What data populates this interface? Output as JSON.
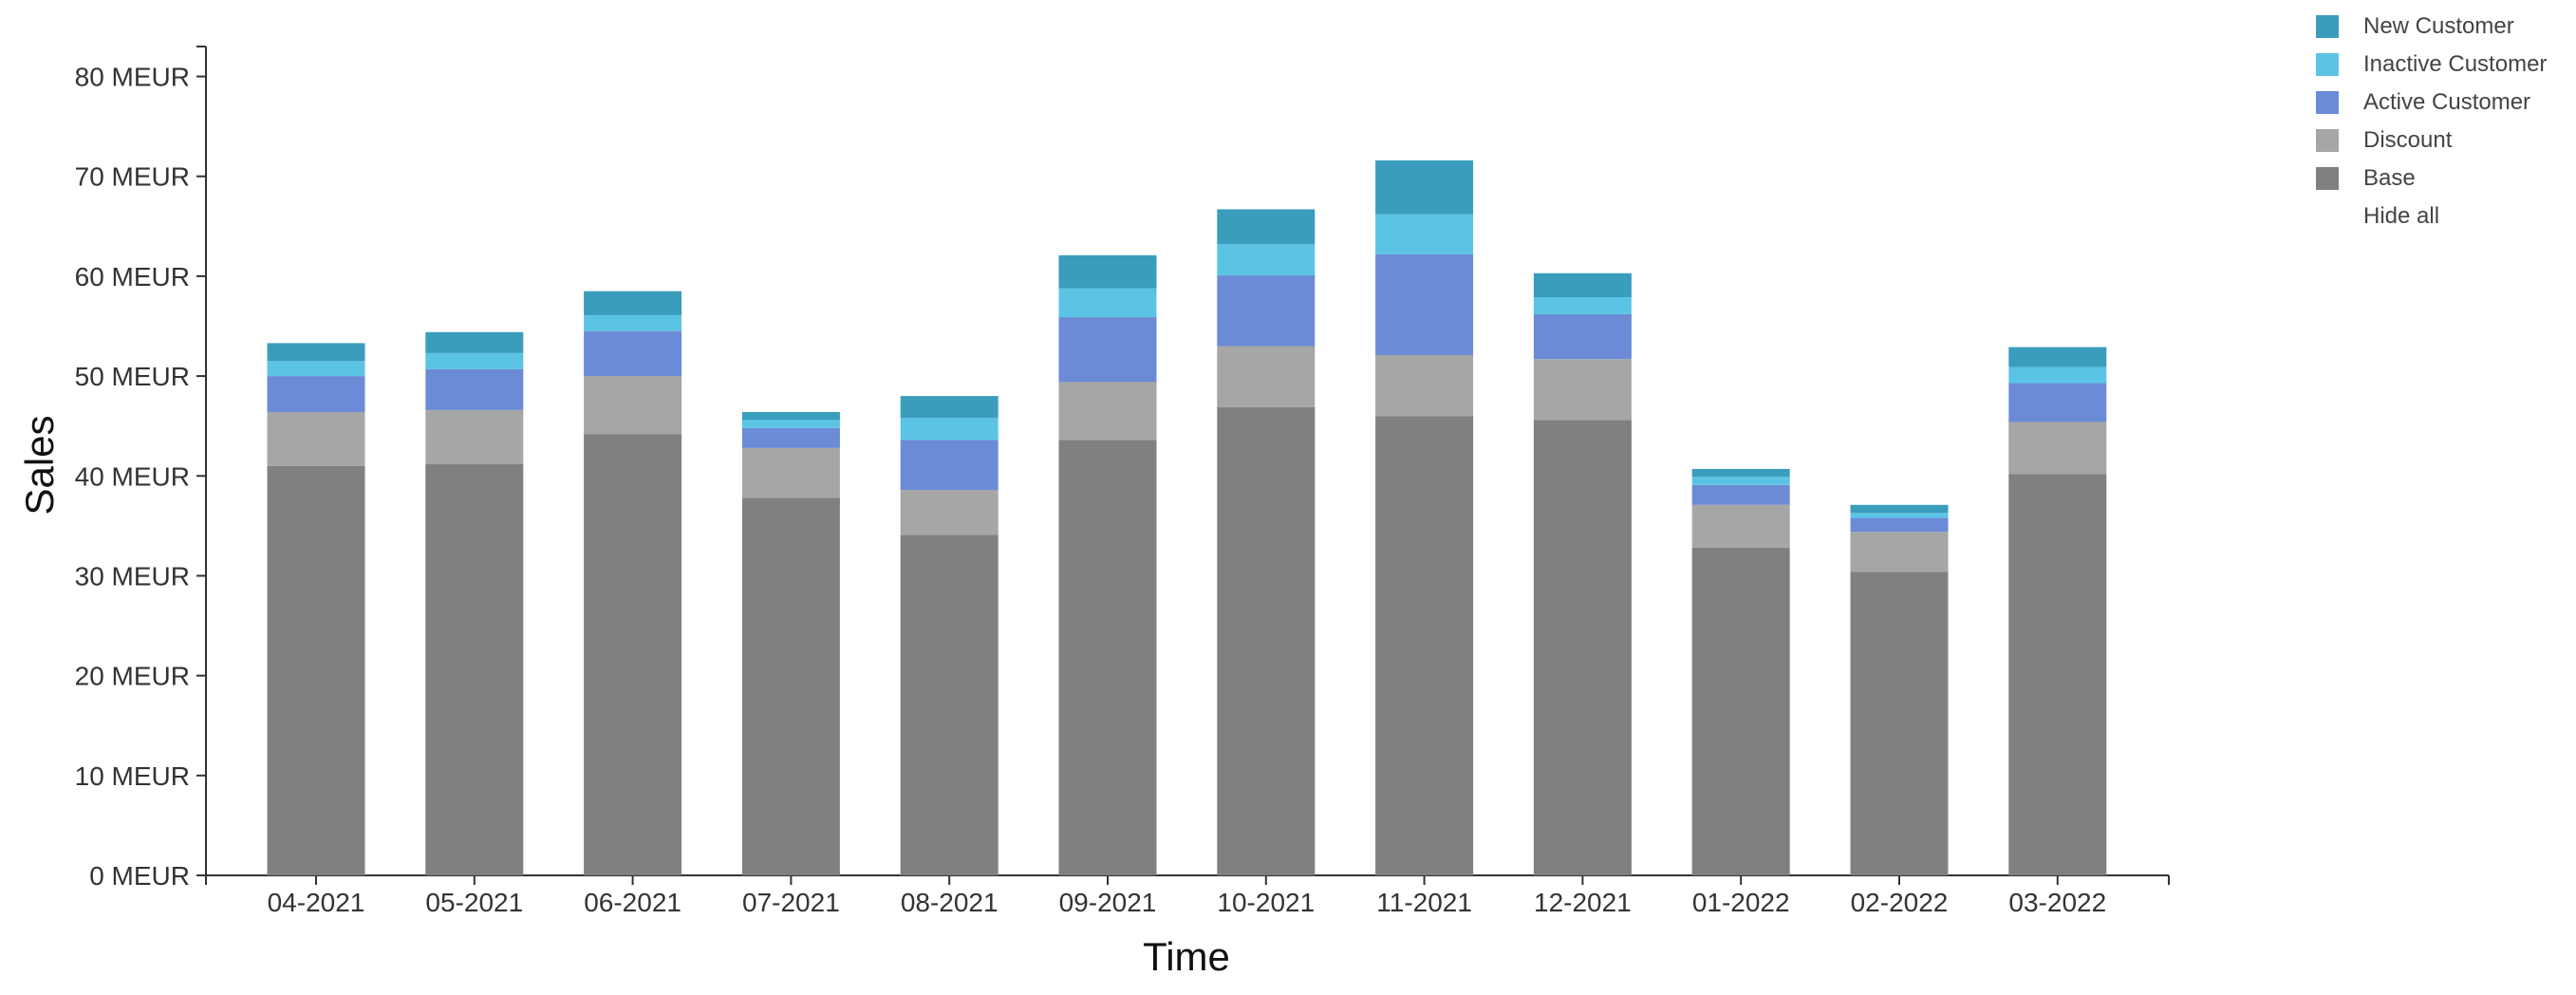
{
  "chart_data": {
    "type": "bar",
    "stacked": true,
    "xlabel": "Time",
    "ylabel": "Sales",
    "ylim": [
      0,
      83
    ],
    "yticks": [
      0,
      10,
      20,
      30,
      40,
      50,
      60,
      70,
      80
    ],
    "ytick_labels": [
      "0 MEUR",
      "10 MEUR",
      "20 MEUR",
      "30 MEUR",
      "40 MEUR",
      "50 MEUR",
      "60 MEUR",
      "70 MEUR",
      "80 MEUR"
    ],
    "categories": [
      "04-2021",
      "05-2021",
      "06-2021",
      "07-2021",
      "08-2021",
      "09-2021",
      "10-2021",
      "11-2021",
      "12-2021",
      "01-2022",
      "02-2022",
      "03-2022"
    ],
    "series": [
      {
        "name": "Base",
        "color": "#808080",
        "values": [
          41.0,
          41.2,
          44.2,
          37.8,
          34.1,
          43.6,
          46.9,
          46.0,
          45.6,
          32.8,
          30.4,
          40.2
        ]
      },
      {
        "name": "Discount",
        "color": "#a6a6a6",
        "values": [
          5.4,
          5.4,
          5.8,
          5.0,
          4.5,
          5.8,
          6.1,
          6.1,
          6.1,
          4.3,
          4.0,
          5.2
        ]
      },
      {
        "name": "Active Customer",
        "color": "#6b8bd6",
        "values": [
          3.6,
          4.1,
          4.5,
          2.0,
          5.0,
          6.5,
          7.1,
          10.1,
          4.5,
          2.0,
          1.4,
          3.9
        ]
      },
      {
        "name": "Inactive Customer",
        "color": "#5bc4e4",
        "values": [
          1.5,
          1.6,
          1.6,
          0.8,
          2.2,
          2.9,
          3.1,
          4.0,
          1.7,
          0.8,
          0.5,
          1.6
        ]
      },
      {
        "name": "New Customer",
        "color": "#3a9dbc",
        "values": [
          1.8,
          2.1,
          2.4,
          0.8,
          2.2,
          3.3,
          3.5,
          5.4,
          2.4,
          0.8,
          0.8,
          2.0
        ]
      }
    ],
    "legend": {
      "placement": "top-right",
      "order": [
        "New Customer",
        "Inactive Customer",
        "Active Customer",
        "Discount",
        "Base"
      ],
      "hide_all_label": "Hide all"
    },
    "grid": false
  }
}
